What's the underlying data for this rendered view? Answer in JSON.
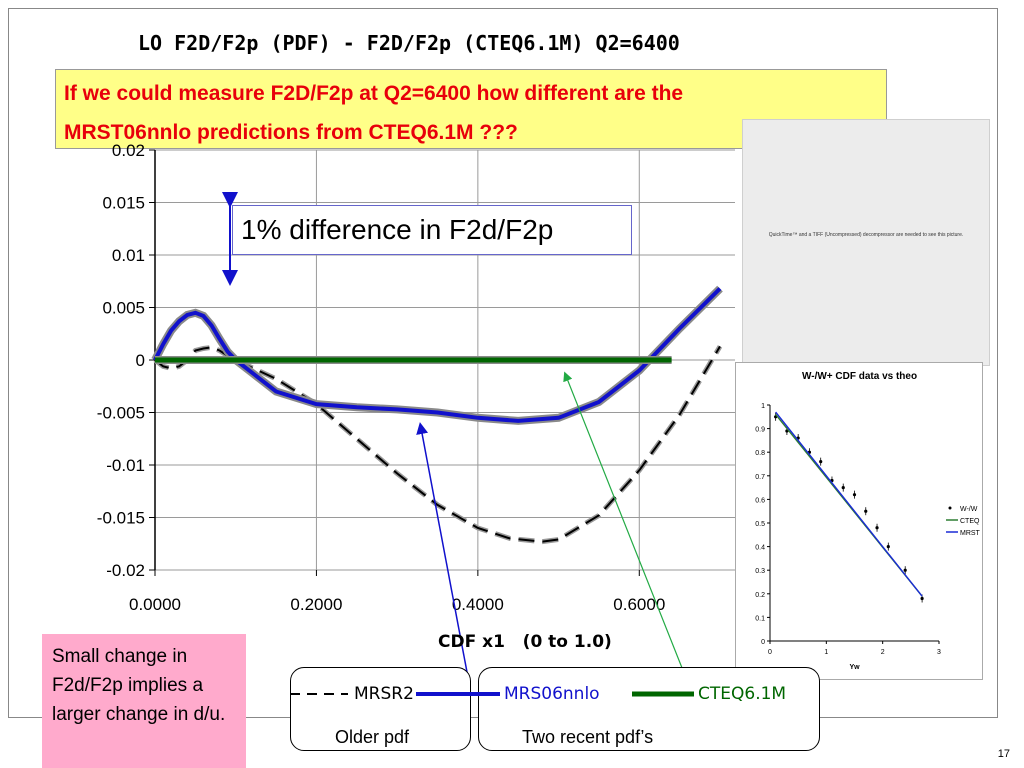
{
  "slide": {
    "title": "LO F2D/F2p (PDF) - F2D/F2p  (CTEQ6.1M) Q2=6400",
    "question_line1": "If we could measure F2D/F2p at Q2=6400 how different are the",
    "question_line2": "MRST06nnlo predictions from CTEQ6.1M ???",
    "difference_label": "1% difference in F2d/F2p",
    "note": "Small change in F2d/F2p implies a larger change in d/u.",
    "older_pdf_label": "Older pdf",
    "recent_pdf_label": "Two recent pdf’s",
    "inset_placeholder": "QuickTime™ and a TIFF (Uncompressed) decompressor are needed to see this picture.",
    "page_number": "17"
  },
  "chart_data": [
    {
      "type": "line",
      "title": "",
      "xlabel": "CDF x1   (0 to 1.0)",
      "ylabel": "",
      "xlim": [
        0,
        0.7
      ],
      "ylim": [
        -0.02,
        0.02
      ],
      "x_ticks": [
        "0.0000",
        "0.2000",
        "0.4000",
        "0.6000"
      ],
      "y_ticks": [
        "0.02",
        "0.015",
        "0.01",
        "0.005",
        "0",
        "-0.005",
        "-0.01",
        "-0.015",
        "-0.02"
      ],
      "grid": true,
      "series": [
        {
          "name": "MRSR2",
          "color": "#000000",
          "style": "dashed",
          "points": [
            [
              0,
              0.0
            ],
            [
              0.01,
              -0.0006
            ],
            [
              0.02,
              -0.0008
            ],
            [
              0.03,
              -0.0006
            ],
            [
              0.04,
              0.0
            ],
            [
              0.05,
              0.0009
            ],
            [
              0.06,
              0.0011
            ],
            [
              0.07,
              0.0012
            ],
            [
              0.08,
              0.0009
            ],
            [
              0.09,
              0.0004
            ],
            [
              0.1,
              0.0
            ],
            [
              0.15,
              -0.0018
            ],
            [
              0.2,
              -0.0042
            ],
            [
              0.25,
              -0.0075
            ],
            [
              0.3,
              -0.0108
            ],
            [
              0.35,
              -0.0138
            ],
            [
              0.4,
              -0.016
            ],
            [
              0.44,
              -0.017
            ],
            [
              0.48,
              -0.0173
            ],
            [
              0.5,
              -0.0171
            ],
            [
              0.55,
              -0.0148
            ],
            [
              0.6,
              -0.0105
            ],
            [
              0.65,
              -0.0052
            ],
            [
              0.7,
              0.0013
            ]
          ]
        },
        {
          "name": "MRS06nnlo",
          "color": "#1111cc",
          "style": "solid",
          "points": [
            [
              0,
              0.0
            ],
            [
              0.01,
              0.0015
            ],
            [
              0.02,
              0.0028
            ],
            [
              0.03,
              0.0037
            ],
            [
              0.04,
              0.0043
            ],
            [
              0.05,
              0.0045
            ],
            [
              0.06,
              0.0042
            ],
            [
              0.07,
              0.0033
            ],
            [
              0.08,
              0.002
            ],
            [
              0.09,
              0.0008
            ],
            [
              0.1,
              0.0
            ],
            [
              0.12,
              -0.0012
            ],
            [
              0.15,
              -0.003
            ],
            [
              0.2,
              -0.0042
            ],
            [
              0.25,
              -0.0045
            ],
            [
              0.3,
              -0.0047
            ],
            [
              0.35,
              -0.005
            ],
            [
              0.4,
              -0.0055
            ],
            [
              0.45,
              -0.0058
            ],
            [
              0.5,
              -0.0055
            ],
            [
              0.55,
              -0.004
            ],
            [
              0.6,
              -0.001
            ],
            [
              0.65,
              0.003
            ],
            [
              0.7,
              0.0068
            ]
          ]
        },
        {
          "name": "CTEQ6.1M",
          "color": "#006600",
          "style": "solid",
          "points": [
            [
              0,
              0
            ],
            [
              0.64,
              0
            ]
          ]
        }
      ]
    },
    {
      "type": "scatter",
      "title": "W-/W+ CDF data vs theo",
      "xlabel": "Yw",
      "ylabel": "",
      "xlim": [
        0,
        3
      ],
      "ylim": [
        0,
        1
      ],
      "x_ticks": [
        "0",
        "1",
        "2",
        "3"
      ],
      "y_ticks": [
        "0",
        "0.1",
        "0.2",
        "0.3",
        "0.4",
        "0.5",
        "0.6",
        "0.7",
        "0.8",
        "0.9",
        "1"
      ],
      "legend": [
        "W-/W",
        "CTEQ",
        "MRST"
      ],
      "series": [
        {
          "name": "W-/W",
          "color": "#000000",
          "style": "points",
          "points": [
            [
              0.1,
              0.95
            ],
            [
              0.3,
              0.89
            ],
            [
              0.5,
              0.86
            ],
            [
              0.7,
              0.8
            ],
            [
              0.9,
              0.76
            ],
            [
              1.1,
              0.68
            ],
            [
              1.3,
              0.65
            ],
            [
              1.5,
              0.62
            ],
            [
              1.7,
              0.55
            ],
            [
              1.9,
              0.48
            ],
            [
              2.1,
              0.4
            ],
            [
              2.4,
              0.3
            ],
            [
              2.7,
              0.18
            ]
          ]
        },
        {
          "name": "CTEQ",
          "color": "#2e7d32",
          "style": "line",
          "points": [
            [
              0.1,
              0.96
            ],
            [
              2.7,
              0.19
            ]
          ]
        },
        {
          "name": "MRST",
          "color": "#1a2bd6",
          "style": "line",
          "points": [
            [
              0.1,
              0.97
            ],
            [
              2.7,
              0.19
            ]
          ]
        }
      ]
    }
  ],
  "legend": {
    "mrsr2": "MRSR2",
    "mrs06nnlo": "MRS06nnlo",
    "cteq": "CTEQ6.1M"
  },
  "colors": {
    "title_text": "#e8000b",
    "question_bg": "#ffff88",
    "note_bg": "#ffaacc",
    "arrow_blue": "#1111cc",
    "arrow_green": "#22aa44"
  }
}
